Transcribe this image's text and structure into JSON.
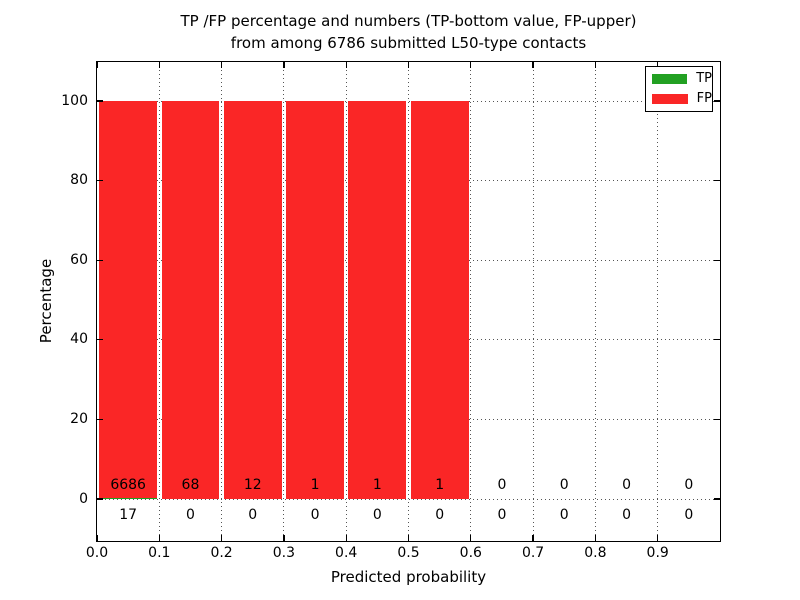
{
  "figure": {
    "title_line1": "TP /FP percentage and numbers (TP-bottom value, FP-upper)",
    "title_line2": "from among 6786 submitted L50-type contacts",
    "xlabel": "Predicted probability",
    "ylabel": "Percentage"
  },
  "legend": {
    "items": [
      {
        "label": "TP",
        "color": "#22a022"
      },
      {
        "label": "FP",
        "color": "#fa2626"
      }
    ]
  },
  "chart_data": {
    "type": "bar",
    "subtype": "stacked-percentage-histogram",
    "title": "TP /FP percentage and numbers (TP-bottom value, FP-upper) from among 6786 submitted L50-type contacts",
    "xlabel": "Predicted probability",
    "ylabel": "Percentage",
    "total_contacts": 6786,
    "x_tick_labels": [
      "0.0",
      "0.1",
      "0.2",
      "0.3",
      "0.4",
      "0.5",
      "0.6",
      "0.7",
      "0.8",
      "0.9"
    ],
    "y_ticks": [
      0,
      20,
      40,
      60,
      80,
      100
    ],
    "xlim": [
      0.0,
      1.0
    ],
    "ylim": [
      -10.5,
      110
    ],
    "bin_width": 0.1,
    "grid": true,
    "grid_style": "dotted",
    "legend_position": "upper right",
    "bar_colors": {
      "TP": "#22a022",
      "FP": "#fa2626"
    },
    "series": [
      {
        "name": "TP",
        "color": "#22a022",
        "counts": [
          17,
          0,
          0,
          0,
          0,
          0,
          0,
          0,
          0,
          0
        ],
        "pct": [
          0.25,
          0,
          0,
          0,
          0,
          0,
          0,
          0,
          0,
          0
        ]
      },
      {
        "name": "FP",
        "color": "#fa2626",
        "counts": [
          6686,
          68,
          12,
          1,
          1,
          1,
          0,
          0,
          0,
          0
        ],
        "pct": [
          99.75,
          100,
          100,
          100,
          100,
          100,
          0,
          0,
          0,
          0
        ]
      }
    ]
  }
}
